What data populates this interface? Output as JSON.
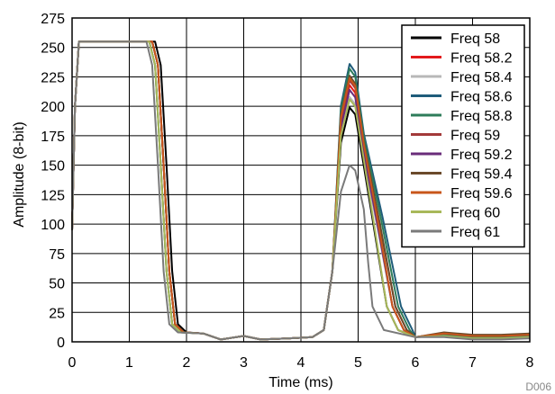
{
  "chart_data": {
    "type": "line",
    "xlabel": "Time (ms)",
    "ylabel": "Amplitude (8-bit)",
    "xlim": [
      0,
      8
    ],
    "ylim": [
      0,
      275
    ],
    "xticks": [
      0,
      1,
      2,
      3,
      4,
      5,
      6,
      7,
      8
    ],
    "yticks": [
      0,
      25,
      50,
      75,
      100,
      125,
      150,
      175,
      200,
      225,
      250,
      275
    ],
    "grid": true,
    "legend_position": "top-right",
    "footer_label": "D006",
    "series": [
      {
        "name": "Freq 58",
        "color": "#000000",
        "peak": 199,
        "fall": 1.55,
        "right": 5.5,
        "tail": 3
      },
      {
        "name": "Freq 58.2",
        "color": "#e31a1c",
        "peak": 218,
        "fall": 1.5,
        "right": 5.6,
        "tail": 4
      },
      {
        "name": "Freq 58.4",
        "color": "#b8b8b8",
        "peak": 208,
        "fall": 1.5,
        "right": 5.6,
        "tail": 3
      },
      {
        "name": "Freq 58.6",
        "color": "#1f5c7a",
        "peak": 236,
        "fall": 1.45,
        "right": 5.75,
        "tail": 4
      },
      {
        "name": "Freq 58.8",
        "color": "#2e7c5a",
        "peak": 232,
        "fall": 1.45,
        "right": 5.7,
        "tail": 4
      },
      {
        "name": "Freq 59",
        "color": "#a33a3a",
        "peak": 222,
        "fall": 1.5,
        "right": 5.65,
        "tail": 5
      },
      {
        "name": "Freq 59.2",
        "color": "#6a2c7a",
        "peak": 214,
        "fall": 1.5,
        "right": 5.6,
        "tail": 5
      },
      {
        "name": "Freq 59.4",
        "color": "#6b4a2b",
        "peak": 226,
        "fall": 1.5,
        "right": 5.65,
        "tail": 6
      },
      {
        "name": "Freq 59.6",
        "color": "#c8561a",
        "peak": 224,
        "fall": 1.5,
        "right": 5.6,
        "tail": 5
      },
      {
        "name": "Freq 60",
        "color": "#a8b85a",
        "peak": 206,
        "fall": 1.45,
        "right": 5.5,
        "tail": 3
      },
      {
        "name": "Freq 61",
        "color": "#7a7a7a",
        "peak": 150,
        "fall": 1.4,
        "right": 5.25,
        "tail": 2
      }
    ]
  }
}
